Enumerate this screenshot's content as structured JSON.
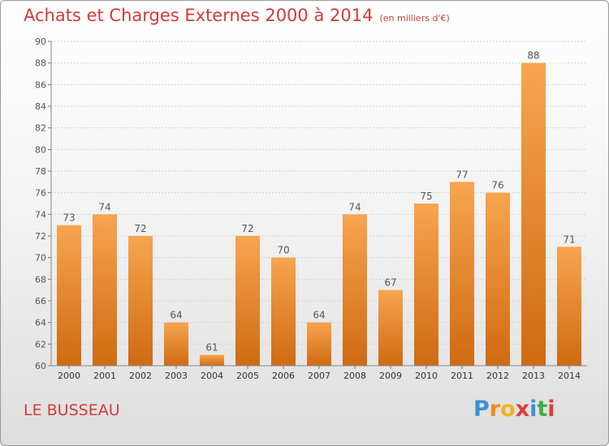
{
  "header": {
    "title": "Achats et Charges Externes 2000 à 2014",
    "unit_note": "(en milliers d'€)"
  },
  "footer": {
    "place": "LE BUSSEAU",
    "brand_letters": [
      "P",
      "r",
      "o",
      "x",
      "i",
      "t",
      "i"
    ],
    "brand_colors": [
      "#3d8fd6",
      "#f08a1e",
      "#f0b41e",
      "#e03c3c",
      "#3d8fd6",
      "#3fae3f",
      "#e03c3c"
    ]
  },
  "colors": {
    "bar_top": "#f7a54f",
    "bar_bottom": "#cf6a12",
    "title": "#d23b3b"
  },
  "chart_data": {
    "type": "bar",
    "categories": [
      "2000",
      "2001",
      "2002",
      "2003",
      "2004",
      "2005",
      "2006",
      "2007",
      "2008",
      "2009",
      "2010",
      "2011",
      "2012",
      "2013",
      "2014"
    ],
    "values": [
      73,
      74,
      72,
      64,
      61,
      72,
      70,
      64,
      74,
      67,
      75,
      77,
      76,
      88,
      71
    ],
    "title": "Achats et Charges Externes 2000 à 2014",
    "ylim": [
      60,
      90
    ],
    "yticks": [
      60,
      62,
      64,
      66,
      68,
      70,
      72,
      74,
      76,
      78,
      80,
      82,
      84,
      86,
      88,
      90
    ],
    "grid": true,
    "data_labels": true
  }
}
